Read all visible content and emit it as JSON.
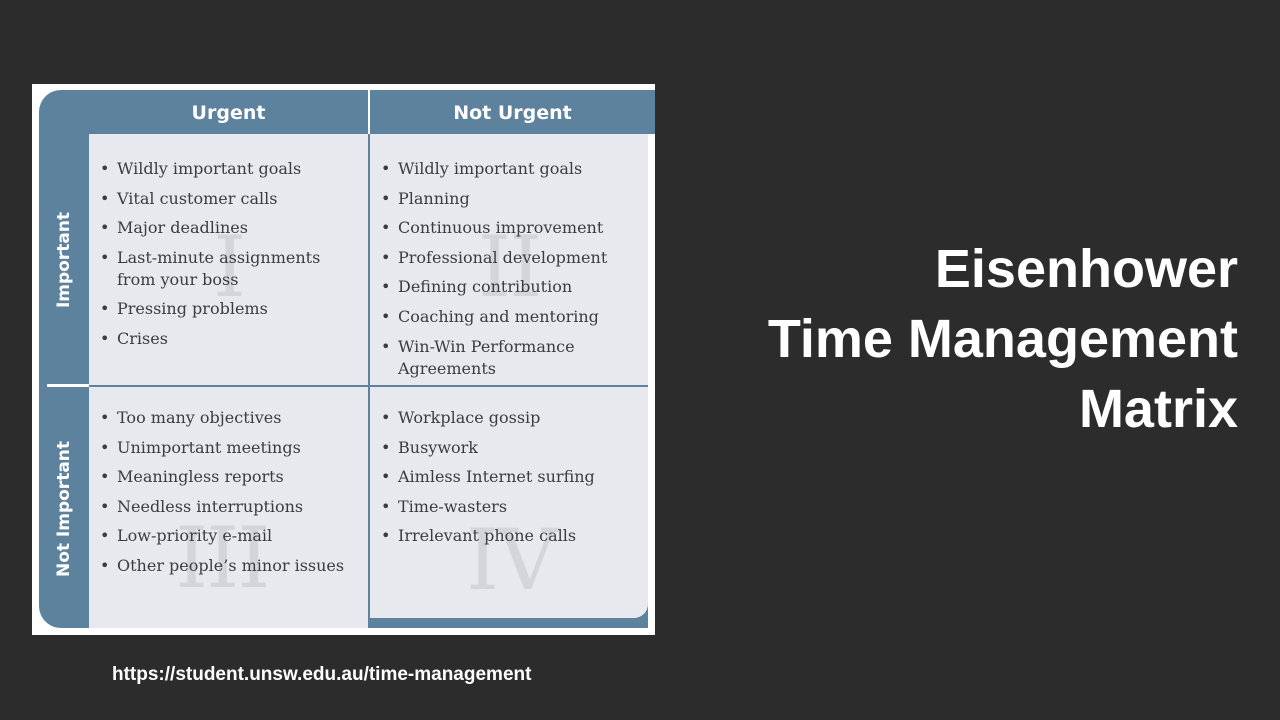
{
  "title": {
    "line1": "Eisenhower",
    "line2": "Time Management",
    "line3": "Matrix"
  },
  "source_url": "https://student.unsw.edu.au/time-management",
  "matrix": {
    "columns": [
      "Urgent",
      "Not Urgent"
    ],
    "rows": [
      "Important",
      "Not Important"
    ],
    "quadrants": [
      {
        "numeral": "I",
        "items": [
          "Wildly important goals",
          "Vital customer calls",
          "Major deadlines",
          "Last-minute assignments from your boss",
          "Pressing problems",
          "Crises"
        ]
      },
      {
        "numeral": "II",
        "items": [
          "Wildly important goals",
          "Planning",
          "Continuous improvement",
          "Professional development",
          "Defining contribution",
          "Coaching and mentoring",
          "Win-Win Performance Agreements"
        ]
      },
      {
        "numeral": "III",
        "items": [
          "Too many objectives",
          "Unimportant meetings",
          "Meaningless reports",
          "Needless interruptions",
          "Low-priority e-mail",
          "Other people’s minor issues"
        ]
      },
      {
        "numeral": "IV",
        "items": [
          "Workplace gossip",
          "Busywork",
          "Aimless Internet surfing",
          "Time-wasters",
          "Irrelevant phone calls"
        ]
      }
    ]
  },
  "colors": {
    "background": "#2c2c2d",
    "header_blue": "#5c829e",
    "cell": "#e7e9ee"
  }
}
